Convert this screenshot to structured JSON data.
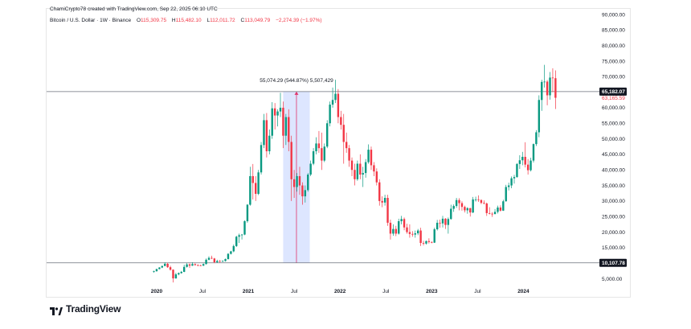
{
  "header": {
    "credit": "ChamiCrypto78 created with TradingView.com, Sep 22, 2025 06:10 UTC",
    "symbol": "Bitcoin / U.S. Dollar · 1W · Binance",
    "ohlc": {
      "o_label": "O",
      "o": "115,309.75",
      "h_label": "H",
      "h": "115,482.10",
      "l_label": "L",
      "l": "112,011.72",
      "c_label": "C",
      "c": "113,049.79",
      "change": "−2,274.39 (−1.97%)"
    }
  },
  "brand": {
    "name": "TradingView"
  },
  "chart_data": {
    "type": "candlestick",
    "y_ticks": [
      5000,
      15000,
      20000,
      25000,
      30000,
      35000,
      40000,
      45000,
      50000,
      55000,
      60000,
      70000,
      75000,
      80000,
      85000,
      90000
    ],
    "y_tick_labels": [
      "5,000.00",
      "15,000.00",
      "20,000.00",
      "25,000.00",
      "30,000.00",
      "35,000.00",
      "40,000.00",
      "45,000.00",
      "50,000.00",
      "55,000.00",
      "60,000.00",
      "70,000.00",
      "75,000.00",
      "80,000.00",
      "85,000.00",
      "90,000.00"
    ],
    "ylim": [
      1500,
      90000
    ],
    "x_ticks": [
      2020,
      2020.5,
      2021,
      2021.5,
      2022,
      2022.5,
      2023,
      2023.5,
      2024
    ],
    "x_tick_labels": [
      "2020",
      "Jul",
      "2021",
      "Jul",
      "2022",
      "Jul",
      "2023",
      "Jul",
      "2024"
    ],
    "xlim": [
      2018.8,
      2024.82
    ],
    "h_lines": [
      {
        "price": 65182.07,
        "label": "65,182.07"
      },
      {
        "price": 10107.78,
        "label": "10,107.78"
      }
    ],
    "current_price_label": {
      "price": 63165.59,
      "label": "63,165.59",
      "color": "#f23645"
    },
    "measure": {
      "x_start": 2021.38,
      "x_end": 2021.67,
      "p_low": 10107.78,
      "p_high": 65182.07,
      "label": "55,074.29 (544.87%) 5,507,429"
    },
    "series": [
      {
        "x": 2019.97,
        "o": 7200,
        "h": 7600,
        "l": 6900,
        "c": 7400
      },
      {
        "x": 2020.0,
        "o": 7400,
        "h": 8200,
        "l": 7300,
        "c": 8100
      },
      {
        "x": 2020.03,
        "o": 8100,
        "h": 8700,
        "l": 8000,
        "c": 8600
      },
      {
        "x": 2020.06,
        "o": 8600,
        "h": 9200,
        "l": 8400,
        "c": 9100
      },
      {
        "x": 2020.09,
        "o": 9100,
        "h": 10300,
        "l": 9000,
        "c": 9800
      },
      {
        "x": 2020.12,
        "o": 9800,
        "h": 10100,
        "l": 8500,
        "c": 8700
      },
      {
        "x": 2020.15,
        "o": 8700,
        "h": 9200,
        "l": 7600,
        "c": 7900
      },
      {
        "x": 2020.18,
        "o": 7900,
        "h": 8000,
        "l": 3800,
        "c": 5100
      },
      {
        "x": 2020.21,
        "o": 5100,
        "h": 6900,
        "l": 5000,
        "c": 6400
      },
      {
        "x": 2020.24,
        "o": 6400,
        "h": 7000,
        "l": 6100,
        "c": 6800
      },
      {
        "x": 2020.27,
        "o": 6800,
        "h": 7500,
        "l": 6600,
        "c": 7200
      },
      {
        "x": 2020.3,
        "o": 7200,
        "h": 9500,
        "l": 7100,
        "c": 8800
      },
      {
        "x": 2020.33,
        "o": 8800,
        "h": 10000,
        "l": 8600,
        "c": 9600
      },
      {
        "x": 2020.36,
        "o": 9600,
        "h": 9900,
        "l": 8500,
        "c": 9200
      },
      {
        "x": 2020.39,
        "o": 9200,
        "h": 10300,
        "l": 9100,
        "c": 9700
      },
      {
        "x": 2020.42,
        "o": 9700,
        "h": 9900,
        "l": 9200,
        "c": 9400
      },
      {
        "x": 2020.45,
        "o": 9400,
        "h": 9600,
        "l": 9000,
        "c": 9300
      },
      {
        "x": 2020.48,
        "o": 9300,
        "h": 9500,
        "l": 9100,
        "c": 9200
      },
      {
        "x": 2020.51,
        "o": 9200,
        "h": 9900,
        "l": 9100,
        "c": 9700
      },
      {
        "x": 2020.54,
        "o": 9700,
        "h": 11500,
        "l": 9600,
        "c": 11100
      },
      {
        "x": 2020.57,
        "o": 11100,
        "h": 12200,
        "l": 10900,
        "c": 11700
      },
      {
        "x": 2020.6,
        "o": 11700,
        "h": 12400,
        "l": 11300,
        "c": 11500
      },
      {
        "x": 2020.63,
        "o": 11500,
        "h": 11700,
        "l": 10000,
        "c": 10300
      },
      {
        "x": 2020.66,
        "o": 10300,
        "h": 11100,
        "l": 10100,
        "c": 10700
      },
      {
        "x": 2020.69,
        "o": 10700,
        "h": 11000,
        "l": 10200,
        "c": 10600
      },
      {
        "x": 2020.72,
        "o": 10600,
        "h": 10900,
        "l": 10400,
        "c": 10700
      },
      {
        "x": 2020.75,
        "o": 10700,
        "h": 11500,
        "l": 10500,
        "c": 11300
      },
      {
        "x": 2020.78,
        "o": 11300,
        "h": 13200,
        "l": 11200,
        "c": 13000
      },
      {
        "x": 2020.81,
        "o": 13000,
        "h": 14000,
        "l": 12800,
        "c": 13800
      },
      {
        "x": 2020.84,
        "o": 13800,
        "h": 16000,
        "l": 13500,
        "c": 15500
      },
      {
        "x": 2020.87,
        "o": 15500,
        "h": 18800,
        "l": 15200,
        "c": 18500
      },
      {
        "x": 2020.9,
        "o": 18500,
        "h": 19500,
        "l": 16500,
        "c": 19000
      },
      {
        "x": 2020.93,
        "o": 19000,
        "h": 19400,
        "l": 17600,
        "c": 19200
      },
      {
        "x": 2020.96,
        "o": 19200,
        "h": 23800,
        "l": 19000,
        "c": 23500
      },
      {
        "x": 2020.99,
        "o": 23500,
        "h": 29000,
        "l": 23000,
        "c": 28800
      },
      {
        "x": 2021.02,
        "o": 28800,
        "h": 41000,
        "l": 28500,
        "c": 38000
      },
      {
        "x": 2021.05,
        "o": 38000,
        "h": 41900,
        "l": 30500,
        "c": 35800
      },
      {
        "x": 2021.08,
        "o": 35800,
        "h": 38000,
        "l": 30000,
        "c": 32300
      },
      {
        "x": 2021.11,
        "o": 32300,
        "h": 40000,
        "l": 31900,
        "c": 39200
      },
      {
        "x": 2021.14,
        "o": 39200,
        "h": 49000,
        "l": 38500,
        "c": 48000
      },
      {
        "x": 2021.17,
        "o": 48000,
        "h": 58000,
        "l": 47000,
        "c": 56000
      },
      {
        "x": 2021.2,
        "o": 56000,
        "h": 58300,
        "l": 44000,
        "c": 46000
      },
      {
        "x": 2021.23,
        "o": 46000,
        "h": 53000,
        "l": 45000,
        "c": 51000
      },
      {
        "x": 2021.26,
        "o": 51000,
        "h": 61800,
        "l": 50000,
        "c": 59800
      },
      {
        "x": 2021.29,
        "o": 59800,
        "h": 61500,
        "l": 53000,
        "c": 57500
      },
      {
        "x": 2021.32,
        "o": 57500,
        "h": 59500,
        "l": 54000,
        "c": 58800
      },
      {
        "x": 2021.35,
        "o": 58800,
        "h": 64800,
        "l": 57000,
        "c": 60000
      },
      {
        "x": 2021.38,
        "o": 60000,
        "h": 62000,
        "l": 47000,
        "c": 51000
      },
      {
        "x": 2021.41,
        "o": 51000,
        "h": 58000,
        "l": 48000,
        "c": 57000
      },
      {
        "x": 2021.44,
        "o": 57000,
        "h": 59500,
        "l": 46000,
        "c": 49000
      },
      {
        "x": 2021.47,
        "o": 49000,
        "h": 51000,
        "l": 30000,
        "c": 37000
      },
      {
        "x": 2021.5,
        "o": 37000,
        "h": 40000,
        "l": 31000,
        "c": 34500
      },
      {
        "x": 2021.53,
        "o": 34500,
        "h": 39000,
        "l": 33000,
        "c": 38000
      },
      {
        "x": 2021.56,
        "o": 38000,
        "h": 41000,
        "l": 32000,
        "c": 35000
      },
      {
        "x": 2021.59,
        "o": 35000,
        "h": 36000,
        "l": 28800,
        "c": 31500
      },
      {
        "x": 2021.62,
        "o": 31500,
        "h": 35000,
        "l": 29500,
        "c": 33500
      },
      {
        "x": 2021.65,
        "o": 33500,
        "h": 39000,
        "l": 33000,
        "c": 38500
      },
      {
        "x": 2021.68,
        "o": 38500,
        "h": 43000,
        "l": 38000,
        "c": 42000
      },
      {
        "x": 2021.71,
        "o": 42000,
        "h": 47000,
        "l": 41500,
        "c": 46000
      },
      {
        "x": 2021.74,
        "o": 46000,
        "h": 50500,
        "l": 45000,
        "c": 48500
      },
      {
        "x": 2021.77,
        "o": 48500,
        "h": 52500,
        "l": 45500,
        "c": 47000
      },
      {
        "x": 2021.8,
        "o": 47000,
        "h": 52000,
        "l": 40000,
        "c": 43000
      },
      {
        "x": 2021.83,
        "o": 43000,
        "h": 48500,
        "l": 42500,
        "c": 47500
      },
      {
        "x": 2021.86,
        "o": 47500,
        "h": 56000,
        "l": 47000,
        "c": 55000
      },
      {
        "x": 2021.89,
        "o": 55000,
        "h": 62000,
        "l": 54000,
        "c": 61000
      },
      {
        "x": 2021.92,
        "o": 61000,
        "h": 66500,
        "l": 60000,
        "c": 62500
      },
      {
        "x": 2021.95,
        "o": 62500,
        "h": 69000,
        "l": 61500,
        "c": 64500
      },
      {
        "x": 2021.98,
        "o": 64500,
        "h": 66000,
        "l": 55000,
        "c": 57000
      },
      {
        "x": 2022.01,
        "o": 57000,
        "h": 59000,
        "l": 53000,
        "c": 54500
      },
      {
        "x": 2022.04,
        "o": 54500,
        "h": 58000,
        "l": 42000,
        "c": 49000
      },
      {
        "x": 2022.07,
        "o": 49000,
        "h": 52000,
        "l": 45500,
        "c": 47000
      },
      {
        "x": 2022.1,
        "o": 47000,
        "h": 48000,
        "l": 41000,
        "c": 43000
      },
      {
        "x": 2022.13,
        "o": 43000,
        "h": 44000,
        "l": 38000,
        "c": 40000
      },
      {
        "x": 2022.16,
        "o": 40000,
        "h": 42000,
        "l": 35000,
        "c": 37000
      },
      {
        "x": 2022.19,
        "o": 37000,
        "h": 43000,
        "l": 36500,
        "c": 42000
      },
      {
        "x": 2022.22,
        "o": 42000,
        "h": 45000,
        "l": 37000,
        "c": 38500
      },
      {
        "x": 2022.25,
        "o": 38500,
        "h": 41000,
        "l": 34500,
        "c": 39000
      },
      {
        "x": 2022.28,
        "o": 39000,
        "h": 43500,
        "l": 37500,
        "c": 42500
      },
      {
        "x": 2022.31,
        "o": 42500,
        "h": 48200,
        "l": 42000,
        "c": 46500
      },
      {
        "x": 2022.34,
        "o": 46500,
        "h": 47500,
        "l": 40000,
        "c": 41500
      },
      {
        "x": 2022.37,
        "o": 41500,
        "h": 42500,
        "l": 38000,
        "c": 39500
      },
      {
        "x": 2022.4,
        "o": 39500,
        "h": 40500,
        "l": 35000,
        "c": 36000
      },
      {
        "x": 2022.43,
        "o": 36000,
        "h": 37000,
        "l": 28500,
        "c": 30000
      },
      {
        "x": 2022.46,
        "o": 30000,
        "h": 31500,
        "l": 28000,
        "c": 29500
      },
      {
        "x": 2022.49,
        "o": 29500,
        "h": 32000,
        "l": 28500,
        "c": 31000
      },
      {
        "x": 2022.52,
        "o": 31000,
        "h": 32000,
        "l": 22000,
        "c": 23000
      },
      {
        "x": 2022.55,
        "o": 23000,
        "h": 24000,
        "l": 17600,
        "c": 19500
      },
      {
        "x": 2022.58,
        "o": 19500,
        "h": 22500,
        "l": 18800,
        "c": 21000
      },
      {
        "x": 2022.61,
        "o": 21000,
        "h": 22000,
        "l": 18700,
        "c": 19500
      },
      {
        "x": 2022.64,
        "o": 19500,
        "h": 24300,
        "l": 19200,
        "c": 23500
      },
      {
        "x": 2022.67,
        "o": 23500,
        "h": 25200,
        "l": 22500,
        "c": 24200
      },
      {
        "x": 2022.7,
        "o": 24200,
        "h": 24700,
        "l": 20600,
        "c": 21500
      },
      {
        "x": 2022.73,
        "o": 21500,
        "h": 22700,
        "l": 19500,
        "c": 20000
      },
      {
        "x": 2022.76,
        "o": 20000,
        "h": 22500,
        "l": 18200,
        "c": 19400
      },
      {
        "x": 2022.79,
        "o": 19400,
        "h": 20300,
        "l": 18500,
        "c": 19200
      },
      {
        "x": 2022.82,
        "o": 19200,
        "h": 20500,
        "l": 18200,
        "c": 19600
      },
      {
        "x": 2022.85,
        "o": 19600,
        "h": 21000,
        "l": 19000,
        "c": 20500
      },
      {
        "x": 2022.88,
        "o": 20500,
        "h": 21400,
        "l": 15500,
        "c": 16500
      },
      {
        "x": 2022.91,
        "o": 16500,
        "h": 17200,
        "l": 15700,
        "c": 16300
      },
      {
        "x": 2022.94,
        "o": 16300,
        "h": 17300,
        "l": 16000,
        "c": 17100
      },
      {
        "x": 2022.97,
        "o": 17100,
        "h": 18000,
        "l": 16300,
        "c": 16800
      },
      {
        "x": 2023.0,
        "o": 16800,
        "h": 17000,
        "l": 16400,
        "c": 16600
      },
      {
        "x": 2023.03,
        "o": 16600,
        "h": 21400,
        "l": 16500,
        "c": 20900
      },
      {
        "x": 2023.06,
        "o": 20900,
        "h": 23900,
        "l": 20500,
        "c": 23000
      },
      {
        "x": 2023.09,
        "o": 23000,
        "h": 24000,
        "l": 21400,
        "c": 22800
      },
      {
        "x": 2023.12,
        "o": 22800,
        "h": 25200,
        "l": 21500,
        "c": 24300
      },
      {
        "x": 2023.15,
        "o": 24300,
        "h": 24500,
        "l": 21000,
        "c": 22300
      },
      {
        "x": 2023.18,
        "o": 22300,
        "h": 24700,
        "l": 19500,
        "c": 24200
      },
      {
        "x": 2023.21,
        "o": 24200,
        "h": 28800,
        "l": 24000,
        "c": 27500
      },
      {
        "x": 2023.24,
        "o": 27500,
        "h": 28900,
        "l": 26500,
        "c": 28400
      },
      {
        "x": 2023.27,
        "o": 28400,
        "h": 31000,
        "l": 27800,
        "c": 30300
      },
      {
        "x": 2023.3,
        "o": 30300,
        "h": 30900,
        "l": 27000,
        "c": 29300
      },
      {
        "x": 2023.33,
        "o": 29300,
        "h": 29900,
        "l": 26900,
        "c": 28100
      },
      {
        "x": 2023.36,
        "o": 28100,
        "h": 28500,
        "l": 26300,
        "c": 27000
      },
      {
        "x": 2023.39,
        "o": 27000,
        "h": 28000,
        "l": 25900,
        "c": 27700
      },
      {
        "x": 2023.42,
        "o": 27700,
        "h": 27800,
        "l": 25000,
        "c": 26300
      },
      {
        "x": 2023.45,
        "o": 26300,
        "h": 31300,
        "l": 26100,
        "c": 30500
      },
      {
        "x": 2023.48,
        "o": 30500,
        "h": 31400,
        "l": 29800,
        "c": 30500
      },
      {
        "x": 2023.51,
        "o": 30500,
        "h": 31800,
        "l": 29700,
        "c": 30300
      },
      {
        "x": 2023.54,
        "o": 30300,
        "h": 30500,
        "l": 29000,
        "c": 29400
      },
      {
        "x": 2023.57,
        "o": 29400,
        "h": 30200,
        "l": 28900,
        "c": 29200
      },
      {
        "x": 2023.6,
        "o": 29200,
        "h": 29500,
        "l": 25200,
        "c": 26100
      },
      {
        "x": 2023.63,
        "o": 26100,
        "h": 28000,
        "l": 25700,
        "c": 25900
      },
      {
        "x": 2023.66,
        "o": 25900,
        "h": 26400,
        "l": 24900,
        "c": 25800
      },
      {
        "x": 2023.69,
        "o": 25800,
        "h": 27400,
        "l": 25700,
        "c": 26500
      },
      {
        "x": 2023.72,
        "o": 26500,
        "h": 28500,
        "l": 26000,
        "c": 27900
      },
      {
        "x": 2023.75,
        "o": 27900,
        "h": 28600,
        "l": 26600,
        "c": 26900
      },
      {
        "x": 2023.78,
        "o": 26900,
        "h": 30400,
        "l": 26800,
        "c": 29900
      },
      {
        "x": 2023.81,
        "o": 29900,
        "h": 35200,
        "l": 29800,
        "c": 34500
      },
      {
        "x": 2023.84,
        "o": 34500,
        "h": 35900,
        "l": 33400,
        "c": 35000
      },
      {
        "x": 2023.87,
        "o": 35000,
        "h": 37900,
        "l": 34100,
        "c": 37300
      },
      {
        "x": 2023.9,
        "o": 37300,
        "h": 38400,
        "l": 35600,
        "c": 37700
      },
      {
        "x": 2023.93,
        "o": 37700,
        "h": 42200,
        "l": 37500,
        "c": 41900
      },
      {
        "x": 2023.96,
        "o": 41900,
        "h": 44700,
        "l": 40300,
        "c": 43100
      },
      {
        "x": 2023.99,
        "o": 43100,
        "h": 45800,
        "l": 41500,
        "c": 44200
      },
      {
        "x": 2024.02,
        "o": 44200,
        "h": 48900,
        "l": 40800,
        "c": 41700
      },
      {
        "x": 2024.05,
        "o": 41700,
        "h": 43500,
        "l": 38500,
        "c": 39900
      },
      {
        "x": 2024.08,
        "o": 39900,
        "h": 43900,
        "l": 39500,
        "c": 43000
      },
      {
        "x": 2024.11,
        "o": 43000,
        "h": 48500,
        "l": 42400,
        "c": 48300
      },
      {
        "x": 2024.14,
        "o": 48300,
        "h": 52800,
        "l": 47700,
        "c": 52100
      },
      {
        "x": 2024.17,
        "o": 52100,
        "h": 64000,
        "l": 50500,
        "c": 62500
      },
      {
        "x": 2024.2,
        "o": 62500,
        "h": 69000,
        "l": 59000,
        "c": 68300
      },
      {
        "x": 2024.23,
        "o": 68300,
        "h": 73800,
        "l": 66500,
        "c": 68400
      },
      {
        "x": 2024.26,
        "o": 68400,
        "h": 68900,
        "l": 60800,
        "c": 64000
      },
      {
        "x": 2024.29,
        "o": 64000,
        "h": 71500,
        "l": 62600,
        "c": 69700
      },
      {
        "x": 2024.32,
        "o": 69700,
        "h": 72700,
        "l": 65000,
        "c": 69500
      },
      {
        "x": 2024.35,
        "o": 69500,
        "h": 72000,
        "l": 59600,
        "c": 63200
      }
    ]
  }
}
